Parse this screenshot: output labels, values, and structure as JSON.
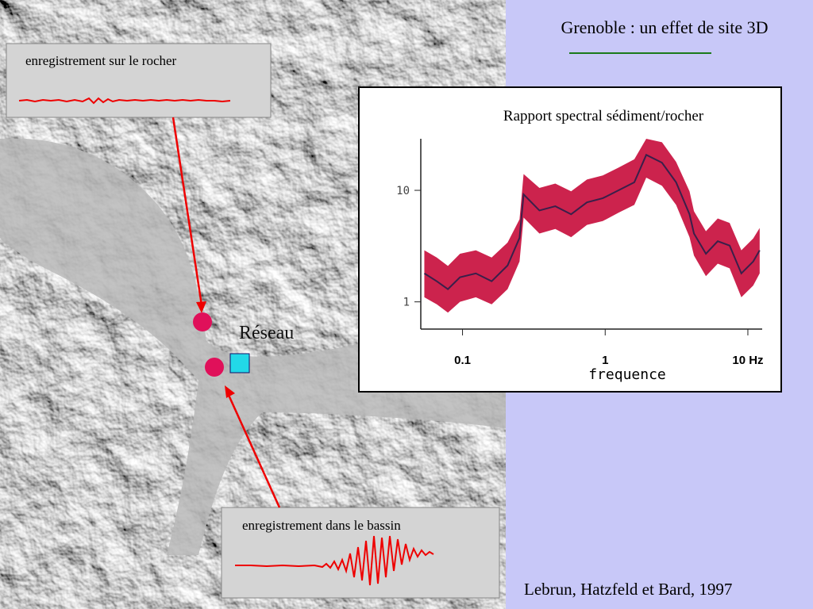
{
  "slide": {
    "title": "Grenoble : un effet de site 3D",
    "network_label": "Réseau",
    "credit": "Lebrun, Hatzfeld et Bard, 1997"
  },
  "panels": [
    {
      "label": "enregistrement sur le rocher"
    },
    {
      "label": "enregistrement dans le bassin"
    }
  ],
  "chart_data": {
    "type": "line",
    "title": "Rapport spectral sédiment/rocher",
    "x_label": "frequence",
    "log_x": true,
    "log_y": true,
    "x": [
      0.054,
      0.066,
      0.079,
      0.096,
      0.124,
      0.16,
      0.207,
      0.251,
      0.268,
      0.346,
      0.447,
      0.577,
      0.745,
      0.962,
      1.24,
      1.6,
      1.94,
      2.5,
      3.14,
      3.9,
      4.19,
      5.08,
      6.15,
      7.45,
      9.0,
      10.9,
      12.1
    ],
    "series": [
      {
        "color": "#3a1f4a",
        "values": [
          1.8,
          1.53,
          1.3,
          1.66,
          1.8,
          1.53,
          2.12,
          3.75,
          9.2,
          6.6,
          7.2,
          6.1,
          7.8,
          8.5,
          10,
          11.8,
          20.8,
          17.7,
          11.8,
          6.1,
          4.1,
          2.7,
          3.5,
          3.2,
          1.8,
          2.3,
          2.9
        ]
      },
      {
        "color": "#c8103e",
        "values": [
          2.9,
          2.5,
          2.1,
          2.7,
          2.9,
          2.5,
          3.4,
          5.5,
          14,
          10.5,
          11.5,
          9.8,
          12.5,
          13.6,
          16,
          19,
          29,
          27,
          18,
          9.8,
          6.5,
          4.3,
          5.6,
          5.1,
          2.9,
          3.7,
          4.6
        ]
      },
      {
        "color": "#c8103e",
        "values": [
          1.1,
          0.95,
          0.8,
          1.0,
          1.1,
          0.95,
          1.3,
          2.3,
          5.7,
          4.1,
          4.5,
          3.8,
          4.9,
          5.3,
          6.3,
          7.4,
          13,
          11,
          7.4,
          3.8,
          2.6,
          1.7,
          2.2,
          2.0,
          1.1,
          1.4,
          1.8
        ]
      }
    ],
    "xlim": [
      0.051,
      12.6
    ],
    "ylim": [
      0.57,
      29
    ],
    "xticks": [
      {
        "value": 0.1,
        "label": "0.1"
      },
      1,
      {
        "value": 10,
        "label": "10 Hz"
      }
    ],
    "yticks": [
      1,
      10
    ]
  }
}
